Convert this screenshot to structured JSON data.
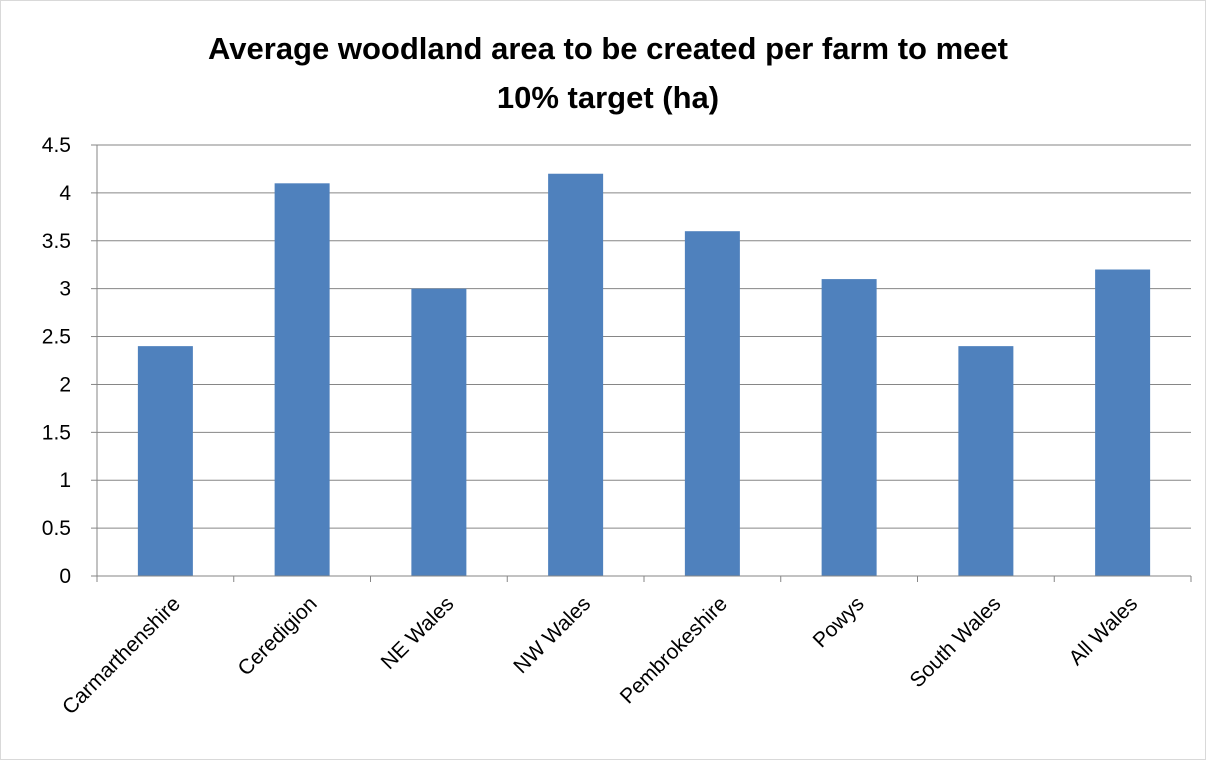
{
  "chart_data": {
    "type": "bar",
    "title_lines": [
      "Average woodland area to be created per farm to meet",
      "10% target (ha)"
    ],
    "categories": [
      "Carmarthenshire",
      "Ceredigion",
      "NE Wales",
      "NW Wales",
      "Pembrokeshire",
      "Powys",
      "South Wales",
      "All Wales"
    ],
    "values": [
      2.4,
      4.1,
      3.0,
      4.2,
      3.6,
      3.1,
      2.4,
      3.2
    ],
    "y_ticks": [
      "0",
      "0.5",
      "1",
      "1.5",
      "2",
      "2.5",
      "3",
      "3.5",
      "4",
      "4.5"
    ],
    "ylim": [
      0,
      4.5
    ],
    "xlabel": "",
    "ylabel": "",
    "grid": true,
    "legend": "none",
    "bar_color": "#4f81bd",
    "grid_color": "#868686"
  }
}
